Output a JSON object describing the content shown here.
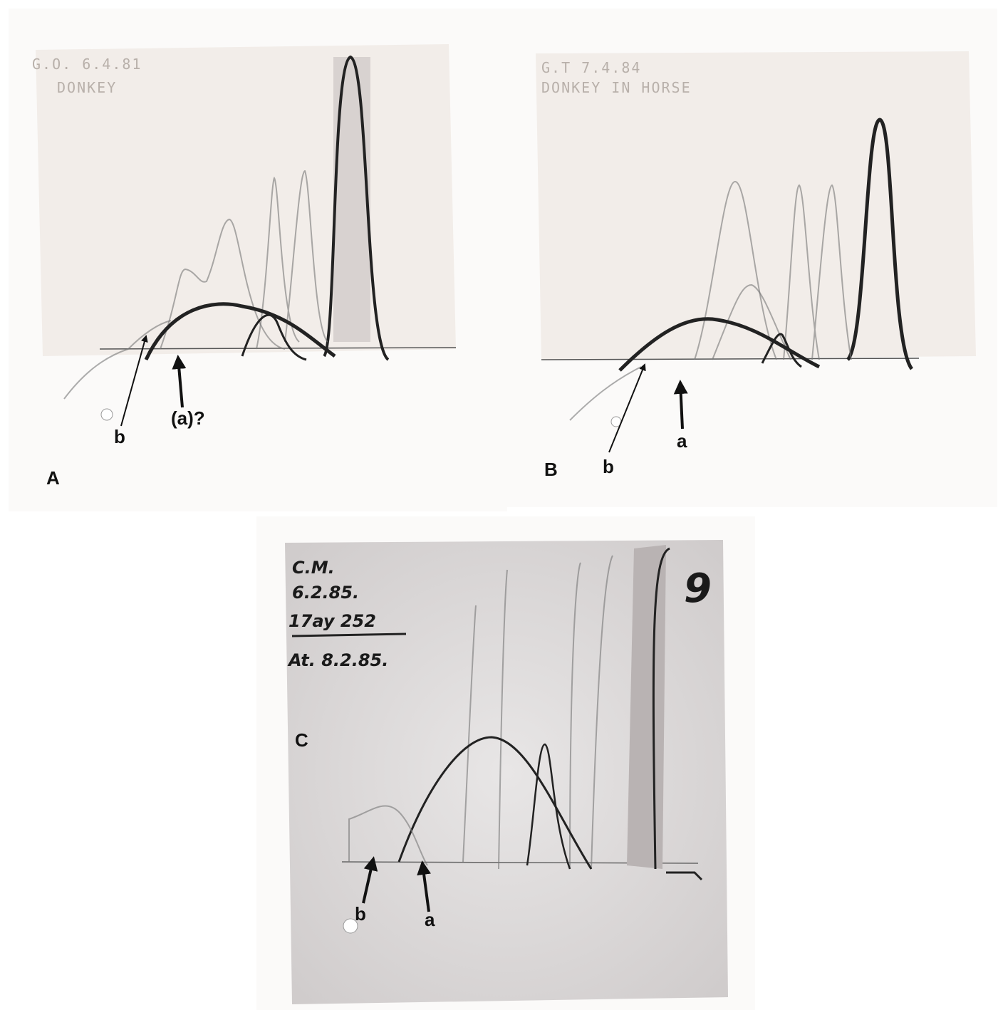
{
  "panels": [
    {
      "label": "A",
      "handwriting": [
        "G.O. 6.4.81",
        "DONKEY"
      ],
      "annotations": [
        "b",
        "(a)?"
      ]
    },
    {
      "label": "B",
      "handwriting": [
        "G.T 7.4.84",
        "DONKEY IN HORSE"
      ],
      "annotations": [
        "b",
        "a"
      ]
    },
    {
      "label": "C",
      "handwriting": [
        "C.M.",
        "6.2.85.",
        "17ay 252",
        "At. 8.2.85.",
        "9"
      ],
      "annotations": [
        "b",
        "a"
      ]
    }
  ]
}
